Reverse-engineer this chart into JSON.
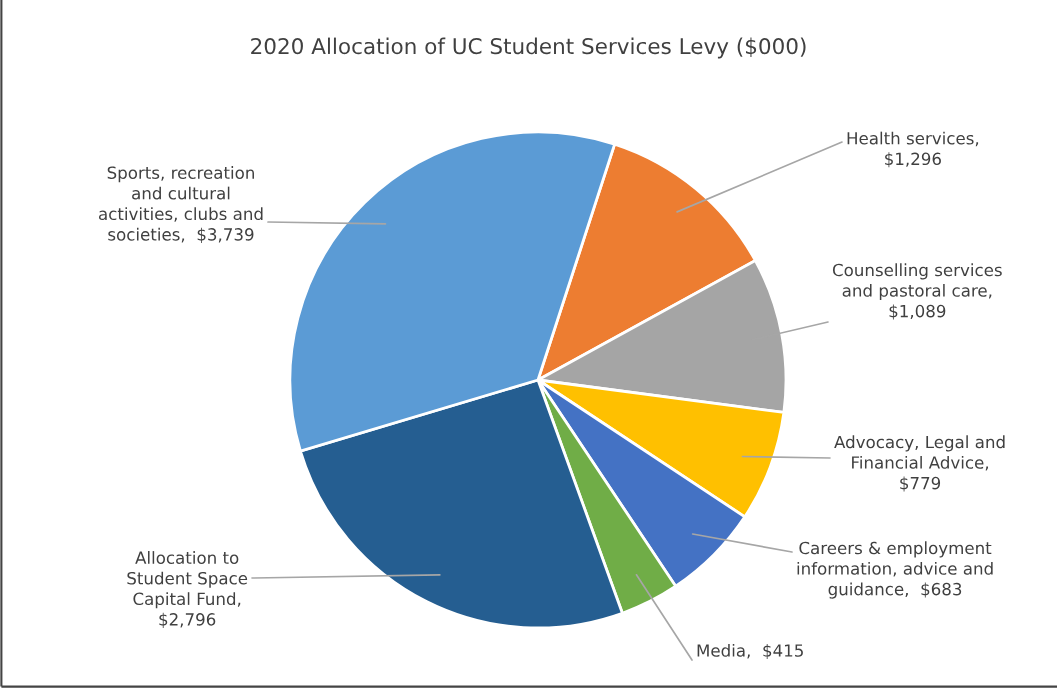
{
  "chart_data": {
    "type": "pie",
    "title": "2020 Allocation of UC Student Services Levy ($000)",
    "categories": [
      "Health services,\n$1,296",
      "Counselling services\nand pastoral care,\n$1,089",
      "Advocacy, Legal and\nFinancial Advice,\n$779",
      "Careers & employment\ninformation, advice and\nguidance,  $683",
      "Media,  $415",
      "Allocation to\nStudent Space\nCapital Fund,\n$2,796",
      "Sports, recreation\nand cultural\nactivities, clubs and\nsocieties,  $3,739"
    ],
    "values": [
      1296,
      1089,
      779,
      683,
      415,
      2796,
      3739
    ],
    "colors": [
      "#ed7d31",
      "#a5a5a5",
      "#ffc000",
      "#4472c4",
      "#70ad47",
      "#255e91",
      "#5b9bd5"
    ],
    "legend": false
  }
}
